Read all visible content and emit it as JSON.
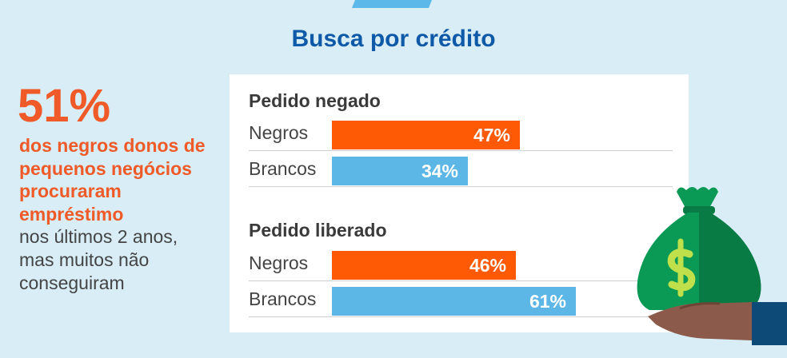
{
  "title": "Busca por crédito",
  "stat": {
    "value": "51%",
    "highlight_lines": [
      "dos negros donos de",
      "pequenos negócios",
      "procuraram",
      "empréstimo"
    ],
    "rest_lines": [
      "nos últimos 2 anos,",
      "mas muitos não",
      "conseguiram"
    ]
  },
  "colors": {
    "negros": "#fe5a06",
    "brancos": "#5cb6e6",
    "title": "#0f5aa8",
    "stat": "#f05a28",
    "background": "#d8edf6"
  },
  "icons": [
    "money-bag-icon",
    "dollar-sign-icon",
    "hand-icon"
  ],
  "chart_data": {
    "type": "bar",
    "orientation": "horizontal",
    "categories": [
      "Negros",
      "Brancos"
    ],
    "groups": [
      {
        "title": "Pedido negado",
        "series": [
          {
            "name": "Negros",
            "value": 47,
            "label": "47%"
          },
          {
            "name": "Brancos",
            "value": 34,
            "label": "34%"
          }
        ]
      },
      {
        "title": "Pedido liberado",
        "series": [
          {
            "name": "Negros",
            "value": 46,
            "label": "46%"
          },
          {
            "name": "Brancos",
            "value": 61,
            "label": "61%"
          }
        ]
      }
    ],
    "xlim": [
      0,
      100
    ],
    "unit": "%"
  }
}
